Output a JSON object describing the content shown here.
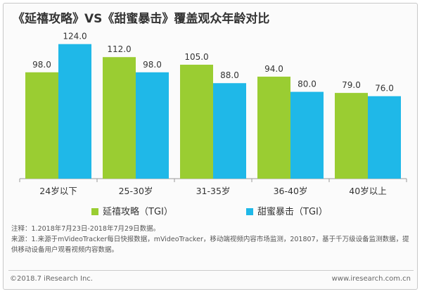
{
  "colors": {
    "series1": "#9acd32",
    "series2": "#1fb8e8",
    "axis": "#999999",
    "text": "#333333"
  },
  "chart_data": {
    "type": "bar",
    "title": "《延禧攻略》VS《甜蜜暴击》覆盖观众年龄对比",
    "categories": [
      "24岁以下",
      "25-30岁",
      "31-35岁",
      "36-40岁",
      "40岁以上"
    ],
    "series": [
      {
        "name": "延禧攻略（TGI）",
        "values": [
          98.0,
          112.0,
          105.0,
          94.0,
          79.0
        ],
        "labels": [
          "98.0",
          "112.0",
          "105.0",
          "94.0",
          "79.0"
        ],
        "color": "#9acd32"
      },
      {
        "name": "甜蜜暴击（TGI）",
        "values": [
          124.0,
          98.0,
          88.0,
          80.0,
          76.0
        ],
        "labels": [
          "124.0",
          "98.0",
          "88.0",
          "80.0",
          "76.0"
        ],
        "color": "#1fb8e8"
      }
    ],
    "xlabel": "",
    "ylabel": "",
    "ylim": [
      0,
      140
    ],
    "grid": false,
    "legend_position": "bottom-center"
  },
  "notes": {
    "line1": "注释：1.2018年7月23日-2018年7月29日数据。",
    "line2": "来源：1.来源于mVideoTracker每日快报数据，mVideoTracker，移动端视频内容市场监测，201807，基于千万级设备监测数据，提供移动设备用户观看视频内容数据。"
  },
  "footer": {
    "copyright": "©2018.7 iResearch Inc.",
    "website": "www.iresearch.com.cn"
  }
}
